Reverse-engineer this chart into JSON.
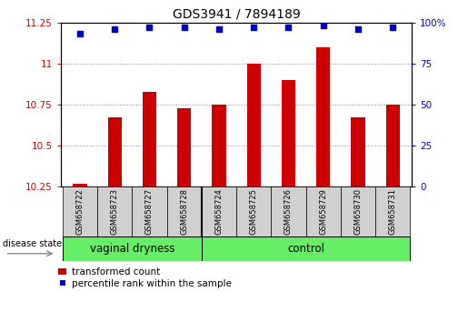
{
  "title": "GDS3941 / 7894189",
  "categories": [
    "GSM658722",
    "GSM658723",
    "GSM658727",
    "GSM658728",
    "GSM658724",
    "GSM658725",
    "GSM658726",
    "GSM658729",
    "GSM658730",
    "GSM658731"
  ],
  "bar_values": [
    10.27,
    10.67,
    10.83,
    10.73,
    10.75,
    11.0,
    10.9,
    11.1,
    10.67,
    10.75
  ],
  "percentile_values": [
    93,
    96,
    97,
    97,
    96,
    97,
    97,
    98,
    96,
    97
  ],
  "bar_color": "#cc0000",
  "dot_color": "#0000cc",
  "ylim_left": [
    10.25,
    11.25
  ],
  "ylim_right": [
    0,
    100
  ],
  "yticks_left": [
    10.25,
    10.5,
    10.75,
    11.0,
    11.25
  ],
  "ytick_labels_left": [
    "10.25",
    "10.5",
    "10.75",
    "11",
    "11.25"
  ],
  "yticks_right": [
    0,
    25,
    50,
    75,
    100
  ],
  "ytick_labels_right": [
    "0",
    "25",
    "50",
    "75",
    "100%"
  ],
  "group1_label": "vaginal dryness",
  "group2_label": "control",
  "group1_indices": [
    0,
    1,
    2,
    3
  ],
  "group2_indices": [
    4,
    5,
    6,
    7,
    8,
    9
  ],
  "disease_state_label": "disease state",
  "legend_bar_label": "transformed count",
  "legend_dot_label": "percentile rank within the sample",
  "bar_width": 0.4,
  "group_color": "#66ee66",
  "xtick_area_color": "#d0d0d0",
  "background_color": "#ffffff",
  "title_fontsize": 10,
  "tick_fontsize": 7.5,
  "legend_fontsize": 7.5,
  "group_label_fontsize": 8.5,
  "sample_label_fontsize": 6,
  "disease_state_fontsize": 7
}
